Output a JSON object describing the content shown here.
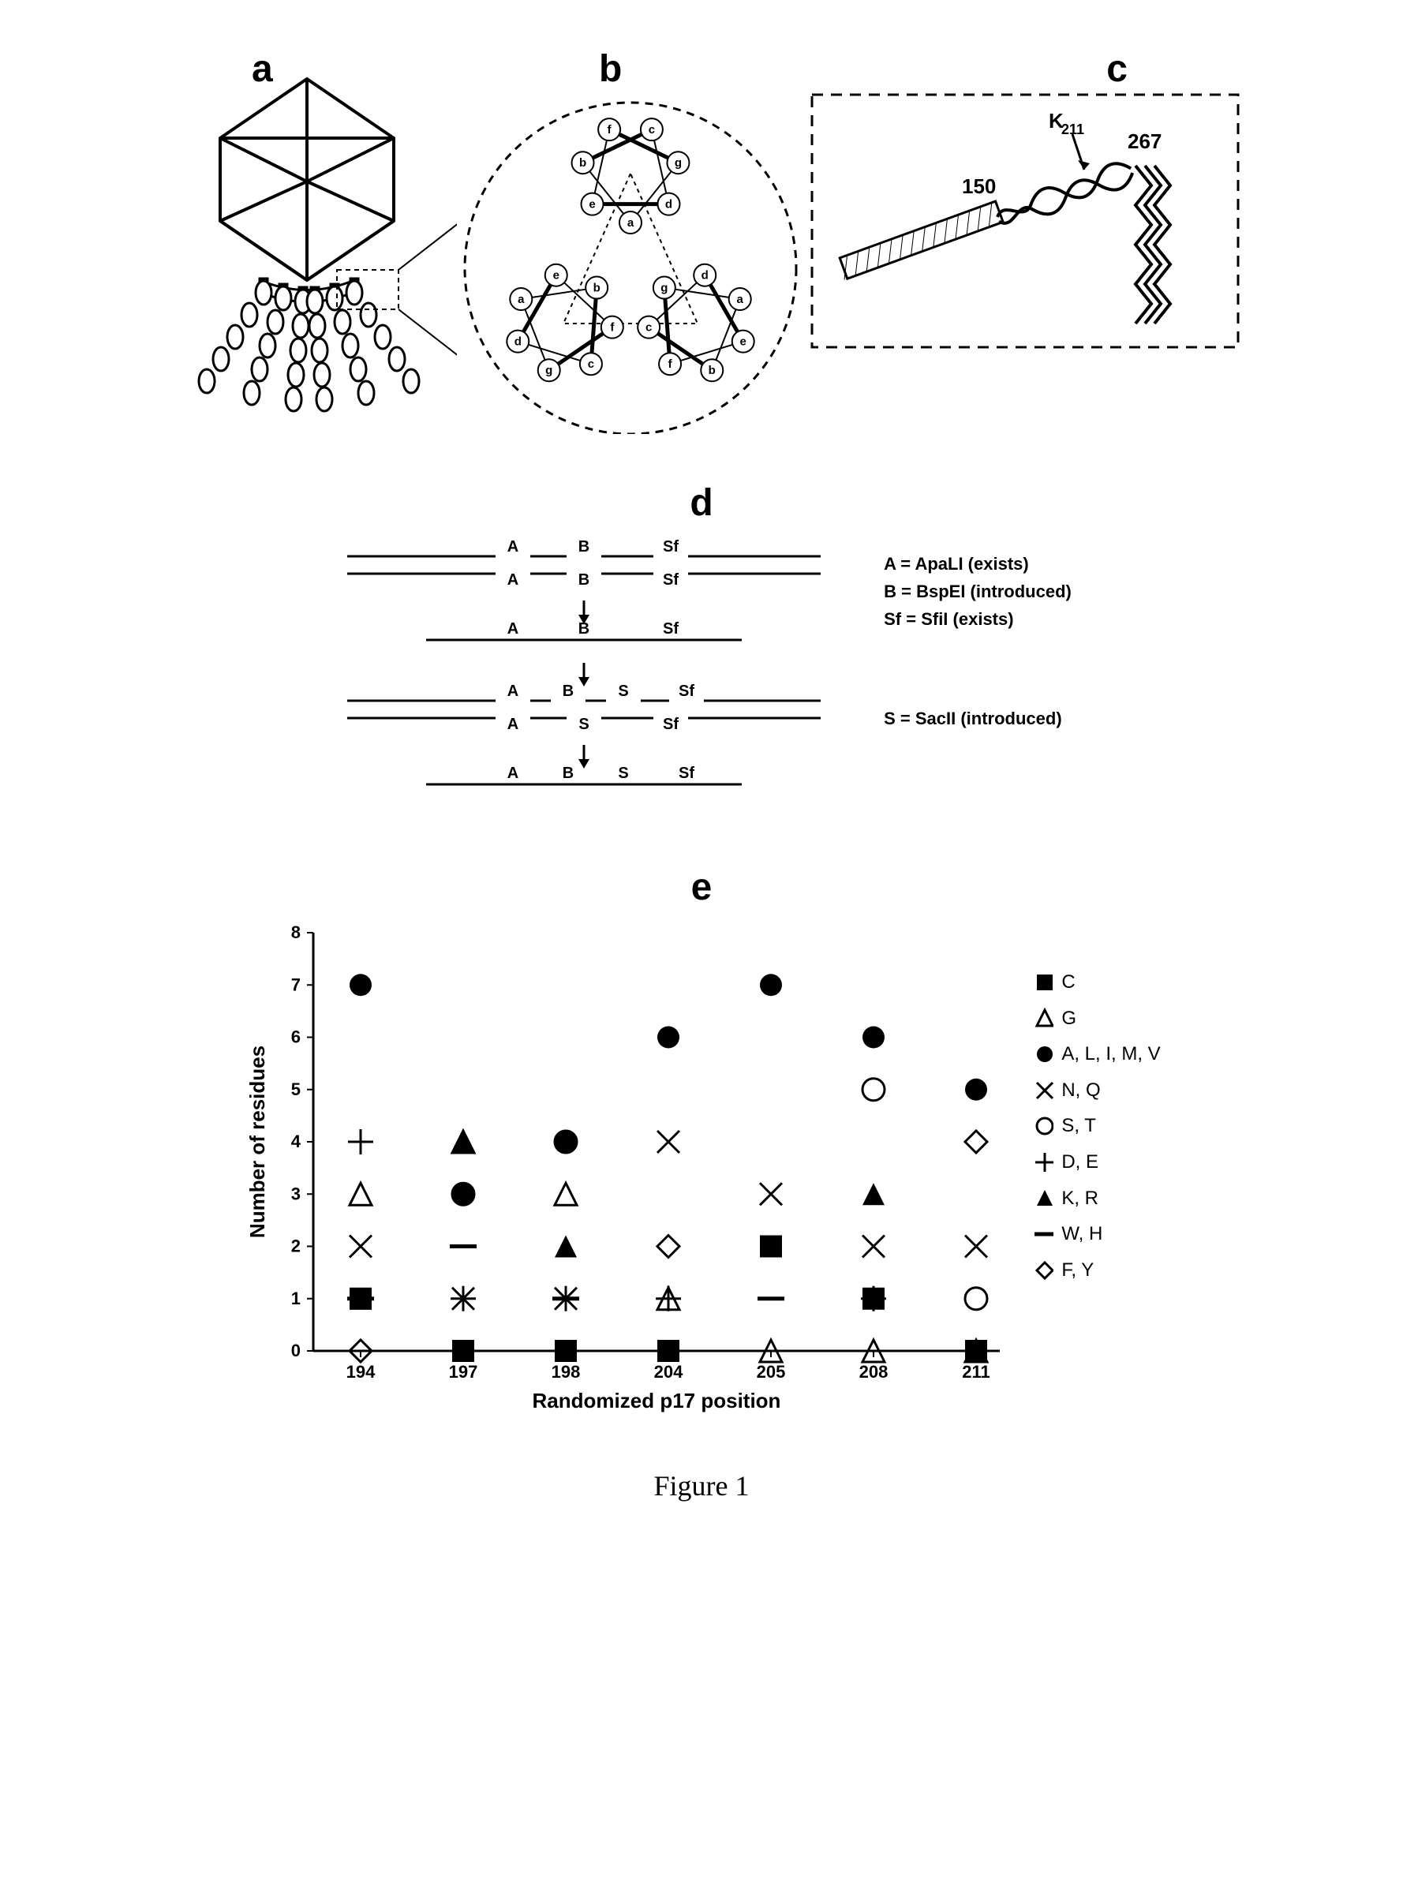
{
  "figure_caption": "Figure 1",
  "panels": {
    "a": {
      "label": "a"
    },
    "b": {
      "label": "b",
      "heptad_letters": [
        "a",
        "b",
        "c",
        "d",
        "e",
        "f",
        "g"
      ]
    },
    "c": {
      "label": "c",
      "annotations": {
        "left_num": "150",
        "mid_label": "K₂₁₁",
        "right_num": "267"
      }
    },
    "d": {
      "label": "d",
      "legend": [
        "A = ApaLI (exists)",
        "B = BspEI (introduced)",
        "Sf = SfiI (exists)",
        "",
        "S = SacII (introduced)"
      ],
      "rows": [
        {
          "type": "double",
          "top": [
            "A",
            "B",
            "Sf"
          ],
          "bottom": [
            "A",
            "B",
            "Sf"
          ]
        },
        {
          "type": "arrow"
        },
        {
          "type": "single",
          "labels": [
            "A",
            "B",
            "Sf"
          ]
        },
        {
          "type": "arrow"
        },
        {
          "type": "double",
          "top": [
            "A",
            "B",
            "S",
            "Sf"
          ],
          "bottom": [
            "A",
            "S",
            "Sf"
          ]
        },
        {
          "type": "arrow"
        },
        {
          "type": "single",
          "labels": [
            "A",
            "B",
            "S",
            "Sf"
          ]
        }
      ]
    },
    "e": {
      "label": "e",
      "y_label": "Number of residues",
      "x_label": "Randomized p17 position",
      "y_lim": [
        0,
        8
      ],
      "y_tick_step": 1,
      "x_categories": [
        194,
        197,
        198,
        204,
        205,
        208,
        211
      ],
      "background_color": "#ffffff",
      "axis_color": "#000000",
      "text_color": "#000000",
      "marker_size": 14,
      "axis_fontsize": 22,
      "label_fontsize": 26,
      "series": [
        {
          "name": "C",
          "marker": "filled-square",
          "color": "#000000",
          "values": [
            1,
            0,
            0,
            0,
            2,
            1,
            0
          ]
        },
        {
          "name": "G",
          "marker": "open-triangle",
          "color": "#000000",
          "values": [
            3,
            4,
            3,
            1,
            0,
            0,
            0
          ]
        },
        {
          "name": "A, L, I, M, V",
          "marker": "filled-circle",
          "color": "#000000",
          "values": [
            7,
            3,
            4,
            6,
            7,
            6,
            5
          ]
        },
        {
          "name": "N, Q",
          "marker": "x-mark",
          "color": "#000000",
          "values": [
            2,
            1,
            1,
            4,
            3,
            2,
            2
          ]
        },
        {
          "name": "S, T",
          "marker": "open-circle",
          "color": "#000000",
          "values": [
            null,
            3,
            4,
            null,
            null,
            5,
            1
          ]
        },
        {
          "name": "D, E",
          "marker": "plus",
          "color": "#000000",
          "values": [
            4,
            1,
            1,
            1,
            null,
            1,
            null
          ]
        },
        {
          "name": "K, R",
          "marker": "filled-triangle",
          "color": "#000000",
          "values": [
            1,
            4,
            2,
            null,
            null,
            3,
            null
          ]
        },
        {
          "name": "W, H",
          "marker": "dash",
          "color": "#000000",
          "values": [
            1,
            2,
            1,
            null,
            1,
            null,
            null
          ]
        },
        {
          "name": "F, Y",
          "marker": "open-diamond",
          "color": "#000000",
          "values": [
            0,
            null,
            null,
            2,
            null,
            null,
            4
          ]
        }
      ],
      "legend_items": [
        {
          "marker": "filled-square",
          "label": "C"
        },
        {
          "marker": "open-triangle",
          "label": "G"
        },
        {
          "marker": "filled-circle",
          "label": "A, L, I, M, V"
        },
        {
          "marker": "x-mark",
          "label": "N, Q"
        },
        {
          "marker": "open-circle",
          "label": "S, T"
        },
        {
          "marker": "plus",
          "label": "D, E"
        },
        {
          "marker": "filled-triangle",
          "label": "K, R"
        },
        {
          "marker": "dash",
          "label": "W, H"
        },
        {
          "marker": "open-diamond",
          "label": "F, Y"
        }
      ]
    }
  }
}
